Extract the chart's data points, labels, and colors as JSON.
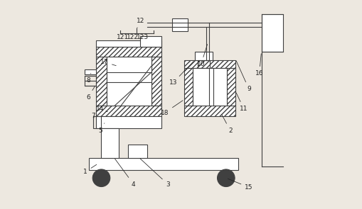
{
  "bg_color": "#ede8e0",
  "line_color": "#404040",
  "fig_width": 5.1,
  "fig_height": 2.95,
  "dpi": 100
}
